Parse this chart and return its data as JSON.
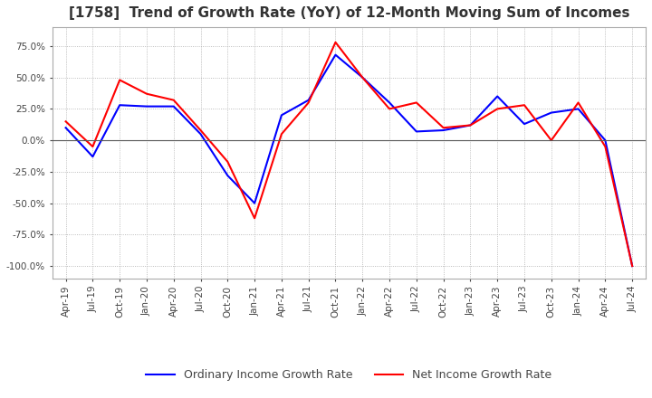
{
  "title": "[1758]  Trend of Growth Rate (YoY) of 12-Month Moving Sum of Incomes",
  "title_fontsize": 11,
  "ordinary_color": "#0000FF",
  "net_color": "#FF0000",
  "legend_labels": [
    "Ordinary Income Growth Rate",
    "Net Income Growth Rate"
  ],
  "background_color": "#ffffff",
  "dates": [
    "Apr-19",
    "Jul-19",
    "Oct-19",
    "Jan-20",
    "Apr-20",
    "Jul-20",
    "Oct-20",
    "Jan-21",
    "Apr-21",
    "Jul-21",
    "Oct-21",
    "Jan-22",
    "Apr-22",
    "Jul-22",
    "Oct-22",
    "Jan-23",
    "Apr-23",
    "Jul-23",
    "Oct-23",
    "Jan-24",
    "Apr-24",
    "Jul-24"
  ],
  "ordinary_income": [
    0.1,
    -0.13,
    0.28,
    0.27,
    0.27,
    0.05,
    -0.28,
    -0.5,
    0.2,
    0.32,
    0.68,
    0.5,
    0.3,
    0.07,
    0.08,
    0.12,
    0.35,
    0.13,
    0.22,
    0.25,
    0.0,
    -1.0
  ],
  "net_income": [
    0.15,
    -0.05,
    0.48,
    0.37,
    0.32,
    0.08,
    -0.17,
    -0.62,
    0.05,
    0.3,
    0.78,
    0.5,
    0.25,
    0.3,
    0.1,
    0.12,
    0.25,
    0.28,
    0.0,
    0.3,
    -0.05,
    -1.0
  ],
  "ylim": [
    -1.1,
    0.9
  ],
  "yticks": [
    0.75,
    0.5,
    0.25,
    0.0,
    -0.25,
    -0.5,
    -0.75,
    -1.0
  ]
}
